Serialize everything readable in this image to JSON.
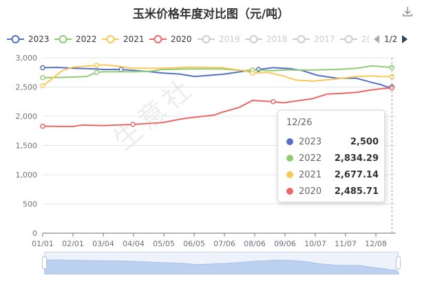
{
  "title": "玉米价格年度对比图（元/吨）",
  "watermark": "生意社",
  "legend": {
    "items": [
      {
        "label": "2023",
        "color": "#5470c6",
        "active": true
      },
      {
        "label": "2022",
        "color": "#91cc75",
        "active": true
      },
      {
        "label": "2021",
        "color": "#fac858",
        "active": true
      },
      {
        "label": "2020",
        "color": "#ee6666",
        "active": true
      },
      {
        "label": "2019",
        "color": "#cccccc",
        "active": false
      },
      {
        "label": "2018",
        "color": "#cccccc",
        "active": false
      },
      {
        "label": "2017",
        "color": "#cccccc",
        "active": false
      },
      {
        "label": "2(",
        "color": "#cccccc",
        "active": false
      }
    ],
    "page": "1/2"
  },
  "tooltip": {
    "date": "12/26",
    "rows": [
      {
        "name": "2023",
        "value": "2,500",
        "color": "#5470c6"
      },
      {
        "name": "2022",
        "value": "2,834.29",
        "color": "#91cc75"
      },
      {
        "name": "2021",
        "value": "2,677.14",
        "color": "#fac858"
      },
      {
        "name": "2020",
        "value": "2,485.71",
        "color": "#ee6666"
      }
    ]
  },
  "chart_data": {
    "type": "line",
    "x_tick_labels": [
      "01/01",
      "02/01",
      "03/04",
      "04/04",
      "05/05",
      "06/05",
      "07/06",
      "08/06",
      "09/06",
      "10/07",
      "11/07",
      "12/08"
    ],
    "x_range": [
      0,
      360
    ],
    "ylim": [
      0,
      3000
    ],
    "y_ticks": [
      0,
      500,
      1000,
      1500,
      2000,
      2500,
      3000
    ],
    "y_tick_labels": [
      "0",
      "500",
      "1,000",
      "1,500",
      "2,000",
      "2,500",
      "3,000"
    ],
    "grid": true,
    "series": [
      {
        "name": "2023",
        "color": "#5470c6",
        "points": [
          [
            0,
            2830
          ],
          [
            15,
            2835
          ],
          [
            31,
            2820
          ],
          [
            55,
            2810
          ],
          [
            62,
            2800
          ],
          [
            80,
            2800
          ],
          [
            92,
            2785
          ],
          [
            110,
            2760
          ],
          [
            122,
            2740
          ],
          [
            140,
            2720
          ],
          [
            155,
            2680
          ],
          [
            170,
            2700
          ],
          [
            185,
            2720
          ],
          [
            205,
            2770
          ],
          [
            220,
            2800
          ],
          [
            235,
            2830
          ],
          [
            252,
            2815
          ],
          [
            265,
            2780
          ],
          [
            280,
            2700
          ],
          [
            300,
            2650
          ],
          [
            320,
            2650
          ],
          [
            335,
            2580
          ],
          [
            345,
            2540
          ],
          [
            351,
            2500
          ],
          [
            356,
            2500
          ]
        ]
      },
      {
        "name": "2022",
        "color": "#91cc75",
        "points": [
          [
            0,
            2660
          ],
          [
            20,
            2665
          ],
          [
            31,
            2670
          ],
          [
            45,
            2680
          ],
          [
            55,
            2750
          ],
          [
            62,
            2760
          ],
          [
            92,
            2760
          ],
          [
            110,
            2770
          ],
          [
            122,
            2800
          ],
          [
            153,
            2810
          ],
          [
            183,
            2810
          ],
          [
            205,
            2780
          ],
          [
            214,
            2790
          ],
          [
            235,
            2780
          ],
          [
            245,
            2790
          ],
          [
            275,
            2790
          ],
          [
            300,
            2800
          ],
          [
            320,
            2820
          ],
          [
            335,
            2860
          ],
          [
            345,
            2850
          ],
          [
            356,
            2834
          ]
        ]
      },
      {
        "name": "2021",
        "color": "#fac858",
        "points": [
          [
            0,
            2520
          ],
          [
            10,
            2650
          ],
          [
            20,
            2780
          ],
          [
            31,
            2840
          ],
          [
            55,
            2870
          ],
          [
            62,
            2880
          ],
          [
            75,
            2860
          ],
          [
            92,
            2820
          ],
          [
            122,
            2820
          ],
          [
            153,
            2840
          ],
          [
            183,
            2830
          ],
          [
            205,
            2780
          ],
          [
            214,
            2740
          ],
          [
            230,
            2750
          ],
          [
            245,
            2690
          ],
          [
            258,
            2620
          ],
          [
            275,
            2600
          ],
          [
            300,
            2640
          ],
          [
            320,
            2680
          ],
          [
            335,
            2690
          ],
          [
            345,
            2680
          ],
          [
            356,
            2677
          ]
        ]
      },
      {
        "name": "2020",
        "color": "#ee6666",
        "points": [
          [
            0,
            1830
          ],
          [
            20,
            1825
          ],
          [
            31,
            1825
          ],
          [
            40,
            1850
          ],
          [
            62,
            1840
          ],
          [
            92,
            1860
          ],
          [
            122,
            1890
          ],
          [
            140,
            1950
          ],
          [
            153,
            1980
          ],
          [
            175,
            2020
          ],
          [
            183,
            2070
          ],
          [
            200,
            2150
          ],
          [
            214,
            2270
          ],
          [
            235,
            2250
          ],
          [
            245,
            2230
          ],
          [
            258,
            2260
          ],
          [
            275,
            2300
          ],
          [
            290,
            2380
          ],
          [
            305,
            2390
          ],
          [
            320,
            2410
          ],
          [
            335,
            2450
          ],
          [
            345,
            2470
          ],
          [
            356,
            2486
          ]
        ]
      }
    ],
    "cursor_x": 356
  }
}
